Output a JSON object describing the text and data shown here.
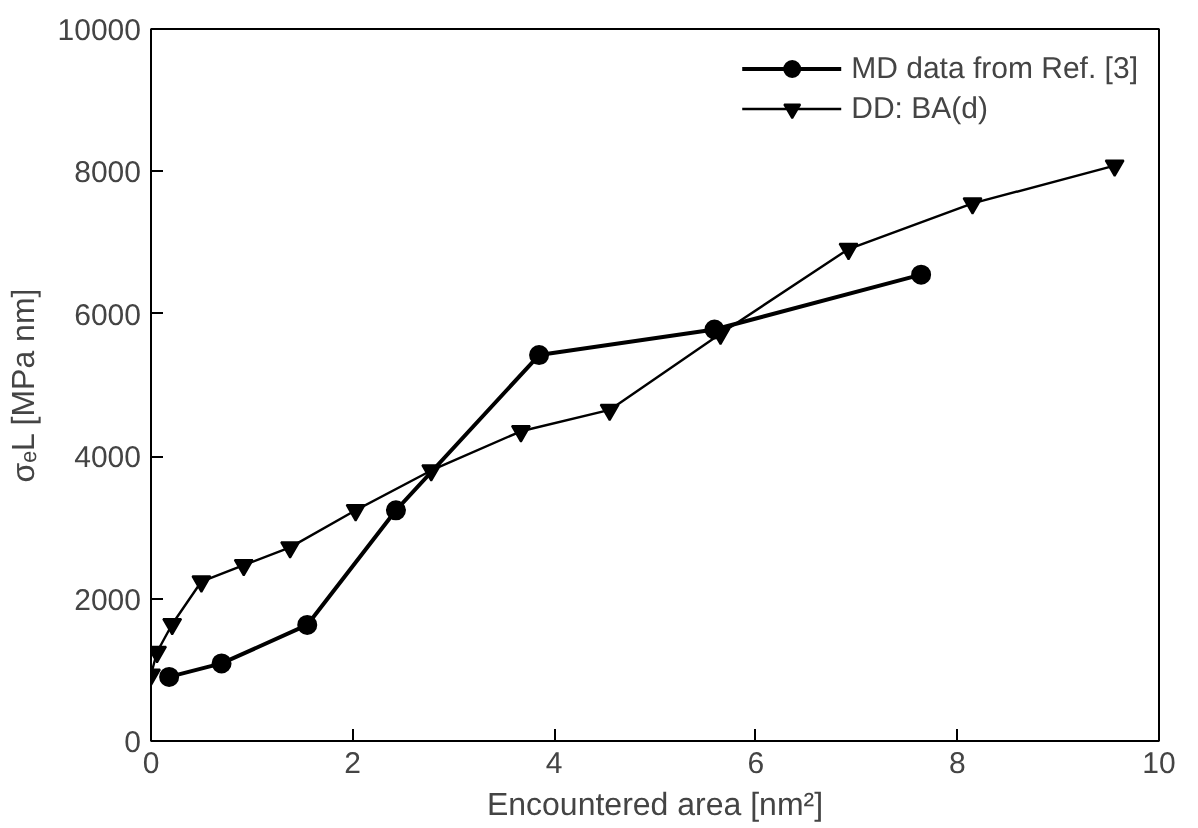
{
  "chart_data": {
    "type": "line",
    "xlabel": "Encountered area [nm²]",
    "ylabel": "σₑL [MPa nm]",
    "xlim": [
      0,
      10
    ],
    "ylim": [
      0,
      10000
    ],
    "xticks": [
      0,
      2,
      4,
      6,
      8,
      10
    ],
    "yticks": [
      0,
      2000,
      4000,
      6000,
      8000,
      10000
    ],
    "grid": false,
    "legend": "top right",
    "series": [
      {
        "name": "MD data from Ref. [3]",
        "color": "#000000",
        "marker": "circle",
        "x": [
          0.18,
          0.7,
          1.55,
          2.43,
          3.85,
          5.59,
          7.64
        ],
        "values": [
          900,
          1090,
          1630,
          3240,
          5420,
          5780,
          6550
        ]
      },
      {
        "name": "DD: BA(d)",
        "color": "#000000",
        "marker": "triangle",
        "x": [
          0,
          0.06,
          0.21,
          0.5,
          0.92,
          1.38,
          2.03,
          2.78,
          3.67,
          4.55,
          5.65,
          6.92,
          8.15,
          9.56
        ],
        "values": [
          930,
          1250,
          1640,
          2240,
          2470,
          2720,
          3240,
          3800,
          4350,
          4650,
          5720,
          6910,
          7550,
          8080
        ]
      }
    ]
  }
}
